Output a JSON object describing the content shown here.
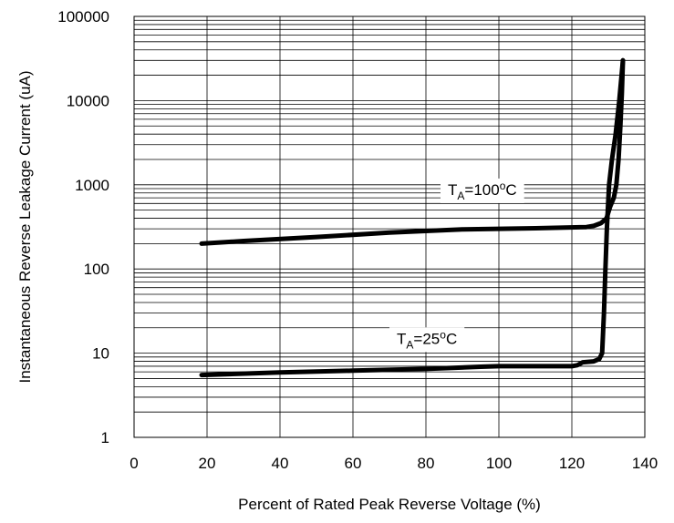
{
  "chart_data": {
    "type": "line",
    "title": "",
    "xlabel": "Percent of Rated Peak Reverse Voltage (%)",
    "ylabel": "Instantaneous Reverse Leakage Current (uA)",
    "xlim": [
      0,
      140
    ],
    "ylim": [
      1,
      100000
    ],
    "yscale": "log",
    "grid": true,
    "x_ticks": [
      "0",
      "20",
      "40",
      "60",
      "80",
      "100",
      "120",
      "140"
    ],
    "y_ticks": [
      "1",
      "10",
      "100",
      "1000",
      "10000",
      "100000"
    ],
    "line_color": "#000000",
    "series": [
      {
        "label_parts": {
          "main": "T",
          "sub": "A",
          "value": "=100",
          "sup": "o",
          "unit": "C"
        },
        "label_anchor": [
          86,
          880
        ],
        "points": [
          [
            18.5,
            200
          ],
          [
            30,
            215
          ],
          [
            50,
            240
          ],
          [
            70,
            270
          ],
          [
            90,
            295
          ],
          [
            110,
            305
          ],
          [
            124,
            315
          ],
          [
            126,
            325
          ],
          [
            128,
            350
          ],
          [
            129.5,
            400
          ],
          [
            130.5,
            550
          ],
          [
            131.5,
            700
          ],
          [
            132.2,
            1000
          ],
          [
            132.8,
            2000
          ],
          [
            133.3,
            5000
          ],
          [
            133.7,
            12000
          ],
          [
            134,
            30000
          ]
        ]
      },
      {
        "label_parts": {
          "main": "T",
          "sub": "A",
          "value": "=25",
          "sup": "o",
          "unit": "C"
        },
        "label_anchor": [
          72,
          15
        ],
        "points": [
          [
            18.5,
            5.5
          ],
          [
            40,
            5.9
          ],
          [
            60,
            6.2
          ],
          [
            80,
            6.5
          ],
          [
            95,
            6.9
          ],
          [
            100,
            7.0
          ],
          [
            110,
            7.0
          ],
          [
            120,
            7.0
          ],
          [
            121.5,
            7.2
          ],
          [
            123,
            7.8
          ],
          [
            126,
            8.0
          ],
          [
            127.5,
            8.5
          ],
          [
            128.3,
            10
          ],
          [
            128.8,
            30
          ],
          [
            129.2,
            100
          ],
          [
            129.6,
            300
          ],
          [
            130.2,
            1000
          ],
          [
            131,
            2000
          ],
          [
            132,
            4000
          ],
          [
            133,
            10000
          ],
          [
            134,
            30000
          ]
        ]
      }
    ]
  }
}
